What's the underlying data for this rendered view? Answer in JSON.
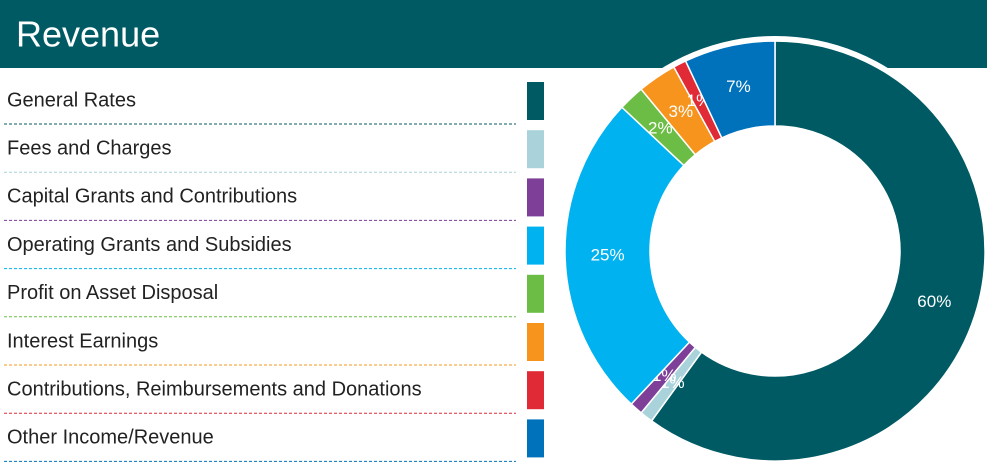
{
  "chart_data": {
    "type": "donut",
    "title": "Revenue",
    "categories": [
      "General Rates",
      "Fees and Charges",
      "Capital Grants and Contributions",
      "Operating Grants and Subsidies",
      "Profit on Asset Disposal",
      "Interest Earnings",
      "Contributions, Reimbursements and Donations",
      "Other Income/Revenue"
    ],
    "values": [
      60,
      1,
      1,
      25,
      2,
      3,
      1,
      7
    ],
    "value_labels": [
      "60%",
      "1%",
      "1%",
      "25%",
      "2%",
      "3%",
      "1%",
      "7%"
    ],
    "colors": [
      "#005a64",
      "#a9d2da",
      "#7d3f98",
      "#00b2ef",
      "#6cbd45",
      "#f7941e",
      "#e02a36",
      "#0072bc"
    ]
  }
}
